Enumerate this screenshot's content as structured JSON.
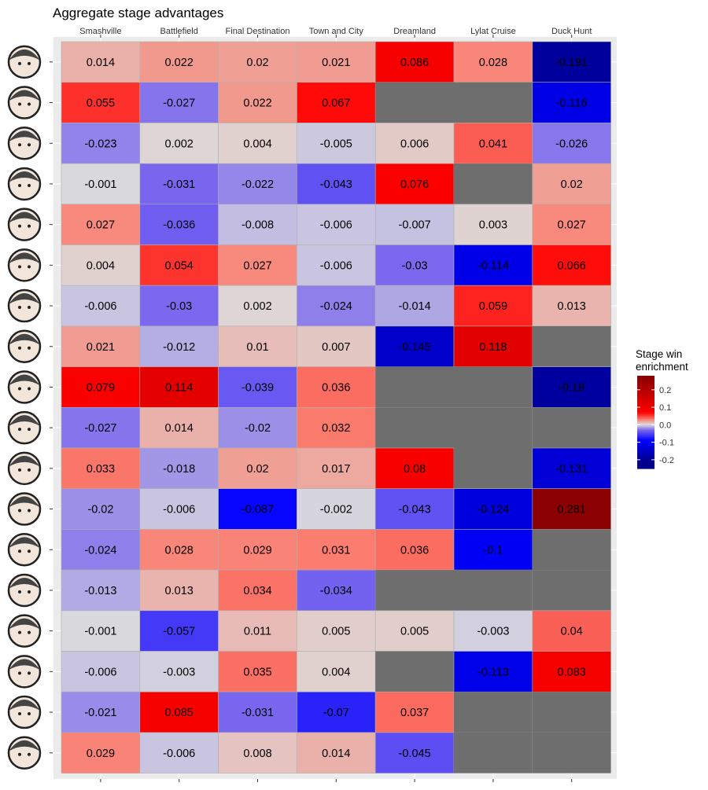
{
  "chart_data": {
    "type": "heatmap",
    "title": "Aggregate stage advantages",
    "xlabel": "",
    "ylabel": "",
    "columns": [
      "Smashville",
      "Battlefield",
      "Final Destination",
      "Town and City",
      "Dreamland",
      "Lylat Cruise",
      "Duck Hunt"
    ],
    "rows": [
      {
        "icon": "bayonetta-icon",
        "values": [
          0.014,
          0.022,
          0.02,
          0.021,
          0.086,
          0.028,
          -0.191
        ]
      },
      {
        "icon": "captain-falcon-icon",
        "values": [
          0.055,
          -0.027,
          0.022,
          0.067,
          null,
          null,
          -0.116
        ]
      },
      {
        "icon": "cloud-icon",
        "values": [
          -0.023,
          0.002,
          0.004,
          -0.005,
          0.006,
          0.041,
          -0.026
        ]
      },
      {
        "icon": "corrin-icon",
        "values": [
          -0.001,
          -0.031,
          -0.022,
          -0.043,
          0.076,
          null,
          0.02
        ]
      },
      {
        "icon": "diddy-kong-icon",
        "values": [
          0.027,
          -0.036,
          -0.008,
          -0.006,
          -0.007,
          0.003,
          0.027
        ]
      },
      {
        "icon": "fox-icon",
        "values": [
          0.004,
          0.054,
          0.027,
          -0.006,
          -0.03,
          -0.114,
          0.066
        ]
      },
      {
        "icon": "mario-icon",
        "values": [
          -0.006,
          -0.03,
          0.002,
          -0.024,
          -0.014,
          0.059,
          0.013
        ]
      },
      {
        "icon": "marth-icon",
        "values": [
          0.021,
          -0.012,
          0.01,
          0.007,
          -0.145,
          0.118,
          null
        ]
      },
      {
        "icon": "mega-man-icon",
        "values": [
          0.079,
          0.114,
          -0.039,
          0.036,
          null,
          null,
          -0.19
        ]
      },
      {
        "icon": "mewtwo-icon",
        "values": [
          -0.027,
          0.014,
          -0.02,
          0.032,
          null,
          null,
          null
        ]
      },
      {
        "icon": "pikachu-icon",
        "values": [
          0.033,
          -0.018,
          0.02,
          0.017,
          0.08,
          null,
          -0.131
        ]
      },
      {
        "icon": "rosalina-icon",
        "values": [
          -0.02,
          -0.006,
          -0.087,
          -0.002,
          -0.043,
          -0.124,
          0.281
        ]
      },
      {
        "icon": "ryu-icon",
        "values": [
          -0.024,
          0.028,
          0.029,
          0.031,
          0.036,
          -0.1,
          null
        ]
      },
      {
        "icon": "sheik-icon",
        "values": [
          -0.013,
          0.013,
          0.034,
          -0.034,
          null,
          null,
          null
        ]
      },
      {
        "icon": "sonic-icon",
        "values": [
          -0.001,
          -0.057,
          0.011,
          0.005,
          0.005,
          -0.003,
          0.04
        ]
      },
      {
        "icon": "toon-link-icon",
        "values": [
          -0.006,
          -0.003,
          0.035,
          0.004,
          null,
          -0.113,
          0.083
        ]
      },
      {
        "icon": "villager-icon",
        "values": [
          -0.021,
          0.085,
          -0.031,
          -0.07,
          0.037,
          null,
          null
        ]
      },
      {
        "icon": "zero-suit-samus-icon",
        "values": [
          0.029,
          -0.006,
          0.008,
          0.014,
          -0.045,
          null,
          null
        ]
      }
    ],
    "legend": {
      "title": "Stage win\nenrichment",
      "ticks": [
        "0.2",
        "0.1",
        "0.0",
        "-0.1",
        "-0.2"
      ],
      "range": [
        -0.25,
        0.28
      ],
      "placement": "right"
    },
    "colors": {
      "missing": "#6e6e6e",
      "panel": "#ebebeb",
      "low_max": "#00008b",
      "low_mid": "#0000ff",
      "low_soft": "#7b68ee",
      "neutral": "#dcdcdc",
      "high_soft": "#fa8072",
      "high_mid": "#ff0000",
      "high_max": "#8b0000"
    },
    "grid": true
  }
}
